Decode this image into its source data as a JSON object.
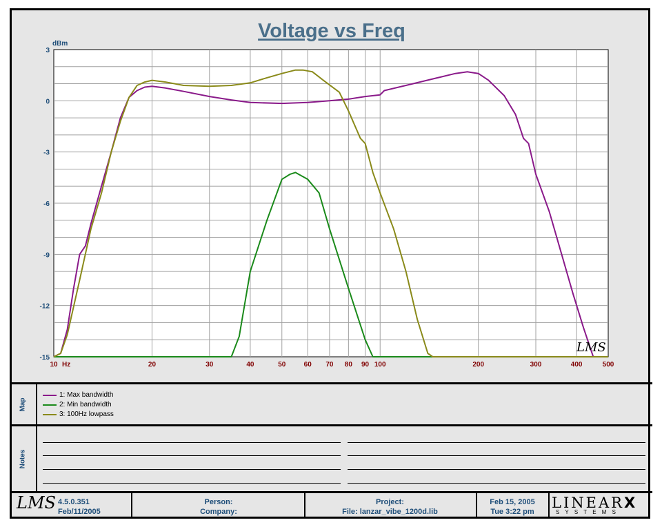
{
  "chart_data": {
    "type": "line",
    "title": "Voltage vs Freq",
    "ylabel": "dBm",
    "xunit": "Hz",
    "xscale": "log",
    "xlim": [
      10,
      500
    ],
    "ylim": [
      -15,
      3
    ],
    "x_ticks": [
      "10",
      "20",
      "30",
      "40",
      "50",
      "60",
      "70",
      "80",
      "90",
      "100",
      "200",
      "300",
      "400",
      "500"
    ],
    "x_tick_values": [
      10,
      20,
      30,
      40,
      50,
      60,
      70,
      80,
      90,
      100,
      200,
      300,
      400,
      500
    ],
    "y_ticks": [
      "3",
      "0",
      "-3",
      "-6",
      "-9",
      "-12",
      "-15"
    ],
    "y_tick_values": [
      3,
      0,
      -3,
      -6,
      -9,
      -12,
      -15
    ],
    "grid": true,
    "series": [
      {
        "name": "1: Max bandwidth",
        "color": "#8a1a8a",
        "points": [
          [
            10,
            -15
          ],
          [
            10.5,
            -14.8
          ],
          [
            11,
            -13.4
          ],
          [
            11.5,
            -11
          ],
          [
            12,
            -9
          ],
          [
            12.5,
            -8.5
          ],
          [
            13,
            -7.2
          ],
          [
            14,
            -5
          ],
          [
            15,
            -3
          ],
          [
            16,
            -1
          ],
          [
            17,
            0.2
          ],
          [
            18,
            0.6
          ],
          [
            19,
            0.8
          ],
          [
            20,
            0.85
          ],
          [
            22,
            0.75
          ],
          [
            25,
            0.55
          ],
          [
            30,
            0.25
          ],
          [
            35,
            0.05
          ],
          [
            40,
            -0.1
          ],
          [
            50,
            -0.15
          ],
          [
            60,
            -0.1
          ],
          [
            70,
            0
          ],
          [
            80,
            0.1
          ],
          [
            90,
            0.25
          ],
          [
            100,
            0.35
          ],
          [
            103,
            0.6
          ],
          [
            120,
            0.9
          ],
          [
            150,
            1.35
          ],
          [
            170,
            1.6
          ],
          [
            185,
            1.7
          ],
          [
            200,
            1.6
          ],
          [
            215,
            1.2
          ],
          [
            240,
            0.3
          ],
          [
            260,
            -0.8
          ],
          [
            275,
            -2.2
          ],
          [
            285,
            -2.5
          ],
          [
            300,
            -4.3
          ],
          [
            330,
            -6.5
          ],
          [
            360,
            -9
          ],
          [
            390,
            -11.3
          ],
          [
            420,
            -13.3
          ],
          [
            450,
            -15
          ]
        ]
      },
      {
        "name": "2: Min bandwidth",
        "color": "#1a8a1a",
        "points": [
          [
            10,
            -15
          ],
          [
            35,
            -15
          ],
          [
            37,
            -13.8
          ],
          [
            40,
            -10
          ],
          [
            45,
            -7
          ],
          [
            50,
            -4.6
          ],
          [
            53,
            -4.3
          ],
          [
            55,
            -4.2
          ],
          [
            60,
            -4.6
          ],
          [
            65,
            -5.4
          ],
          [
            70,
            -7.5
          ],
          [
            80,
            -11
          ],
          [
            90,
            -14
          ],
          [
            95,
            -15
          ],
          [
            500,
            -15
          ]
        ]
      },
      {
        "name": "3: 100Hz lowpass",
        "color": "#8a8a1a",
        "points": [
          [
            10,
            -15
          ],
          [
            10.5,
            -14.8
          ],
          [
            11,
            -13.7
          ],
          [
            12,
            -10.5
          ],
          [
            13,
            -7.5
          ],
          [
            14,
            -5.4
          ],
          [
            15,
            -3
          ],
          [
            16,
            -1.2
          ],
          [
            17,
            0.2
          ],
          [
            18,
            0.9
          ],
          [
            19,
            1.1
          ],
          [
            20,
            1.2
          ],
          [
            22,
            1.1
          ],
          [
            25,
            0.9
          ],
          [
            30,
            0.85
          ],
          [
            35,
            0.9
          ],
          [
            40,
            1.05
          ],
          [
            45,
            1.35
          ],
          [
            50,
            1.6
          ],
          [
            55,
            1.8
          ],
          [
            58,
            1.8
          ],
          [
            62,
            1.7
          ],
          [
            67,
            1.2
          ],
          [
            75,
            0.5
          ],
          [
            80,
            -0.6
          ],
          [
            83,
            -1.3
          ],
          [
            87,
            -2.2
          ],
          [
            90,
            -2.5
          ],
          [
            95,
            -4.2
          ],
          [
            100,
            -5.4
          ],
          [
            110,
            -7.5
          ],
          [
            120,
            -10
          ],
          [
            130,
            -12.8
          ],
          [
            140,
            -14.8
          ],
          [
            145,
            -15
          ],
          [
            500,
            -15
          ]
        ]
      }
    ]
  },
  "watermark": "LMS",
  "map": {
    "label": "Map",
    "items": [
      {
        "label": "1: Max bandwidth",
        "color": "#8a1a8a"
      },
      {
        "label": "2: Min bandwidth",
        "color": "#1a8a1a"
      },
      {
        "label": "3: 100Hz lowpass",
        "color": "#8a8a1a"
      }
    ]
  },
  "notes": {
    "label": "Notes"
  },
  "footer": {
    "logo": "LMS",
    "version": "4.5.0.351",
    "version_date": "Feb/11/2005",
    "person_label": "Person:",
    "company_label": "Company:",
    "project_label": "Project:",
    "file_label": "File: lanzar_vibe_1200d.lib",
    "date": "Feb 15, 2005",
    "time": "Tue  3:22 pm",
    "brand": "LINEAR",
    "brand_x": "X",
    "brand_sub": "S Y S T E M S"
  },
  "colors": {
    "label_blue": "#1f4e79",
    "tick_red": "#800000",
    "grid": "#a0a0a0",
    "plot_bg": "#ffffff",
    "panel_bg": "#e6e6e6"
  }
}
